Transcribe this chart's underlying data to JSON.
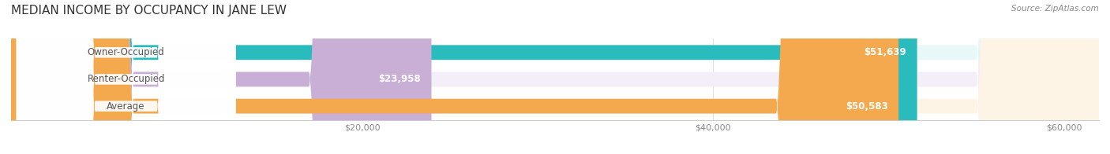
{
  "title": "MEDIAN INCOME BY OCCUPANCY IN JANE LEW",
  "source": "Source: ZipAtlas.com",
  "categories": [
    "Owner-Occupied",
    "Renter-Occupied",
    "Average"
  ],
  "values": [
    51639,
    23958,
    50583
  ],
  "labels": [
    "$51,639",
    "$23,958",
    "$50,583"
  ],
  "bar_colors": [
    "#2abcbc",
    "#c9aed6",
    "#f5a94e"
  ],
  "bar_bg_colors": [
    "#e8f8f8",
    "#f3eef7",
    "#fef4e6"
  ],
  "xlim": [
    0,
    62000
  ],
  "xticks": [
    20000,
    40000,
    60000
  ],
  "xticklabels": [
    "$20,000",
    "$40,000",
    "$60,000"
  ],
  "figsize": [
    14.06,
    1.96
  ],
  "dpi": 100,
  "title_fontsize": 11,
  "label_fontsize": 8.5,
  "bar_height": 0.55,
  "background_color": "#ffffff",
  "bar_label_color": "#ffffff",
  "category_label_color": "#555555",
  "source_color": "#888888"
}
